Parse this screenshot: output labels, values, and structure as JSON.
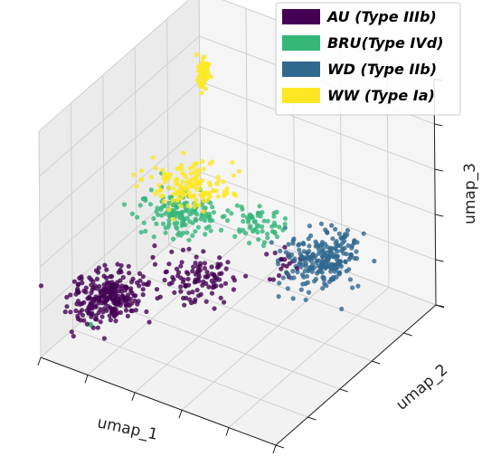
{
  "chart_data": {
    "type": "scatter",
    "projection": "3d",
    "xlabel": "umap_1",
    "ylabel": "umap_2",
    "zlabel": "umap_3",
    "grid": true,
    "tick_labels_shown": false,
    "legend_position": "top-right",
    "series": [
      {
        "name": "AU (Type IIIb)",
        "color": "#440154",
        "clusters": [
          {
            "x": 1.5,
            "y": 2.0,
            "z": 2.0,
            "sx": 1.2,
            "sy": 1.5,
            "sz": 0.6,
            "n": 260
          },
          {
            "x": 4.0,
            "y": 3.8,
            "z": 2.8,
            "sx": 1.5,
            "sy": 1.2,
            "sz": 0.6,
            "n": 110
          },
          {
            "x": 6.5,
            "y": 5.5,
            "z": 3.3,
            "sx": 0.7,
            "sy": 0.7,
            "sz": 0.5,
            "n": 20
          }
        ]
      },
      {
        "name": "BRU(Type IVd)",
        "color": "#35b779",
        "clusters": [
          {
            "x": 3.0,
            "y": 4.5,
            "z": 4.7,
            "sx": 1.6,
            "sy": 1.2,
            "sz": 0.7,
            "n": 150
          },
          {
            "x": 5.5,
            "y": 5.5,
            "z": 4.6,
            "sx": 1.0,
            "sy": 1.0,
            "sz": 0.6,
            "n": 60
          },
          {
            "x": 1.3,
            "y": 1.2,
            "z": 1.2,
            "sx": 0.1,
            "sy": 0.1,
            "sz": 0.3,
            "n": 3
          }
        ]
      },
      {
        "name": "WD (Type IIb)",
        "color": "#31688e",
        "clusters": [
          {
            "x": 7.8,
            "y": 6.2,
            "z": 3.5,
            "sx": 1.2,
            "sy": 1.5,
            "sz": 0.7,
            "n": 240
          }
        ]
      },
      {
        "name": "WW (Type Ia)",
        "color": "#fde725",
        "clusters": [
          {
            "x": 3.0,
            "y": 5.0,
            "z": 5.6,
            "sx": 1.4,
            "sy": 1.2,
            "sz": 0.5,
            "n": 150
          },
          {
            "x": 2.0,
            "y": 7.3,
            "z": 8.7,
            "sx": 0.2,
            "sy": 0.2,
            "sz": 0.7,
            "n": 70
          }
        ]
      }
    ]
  }
}
